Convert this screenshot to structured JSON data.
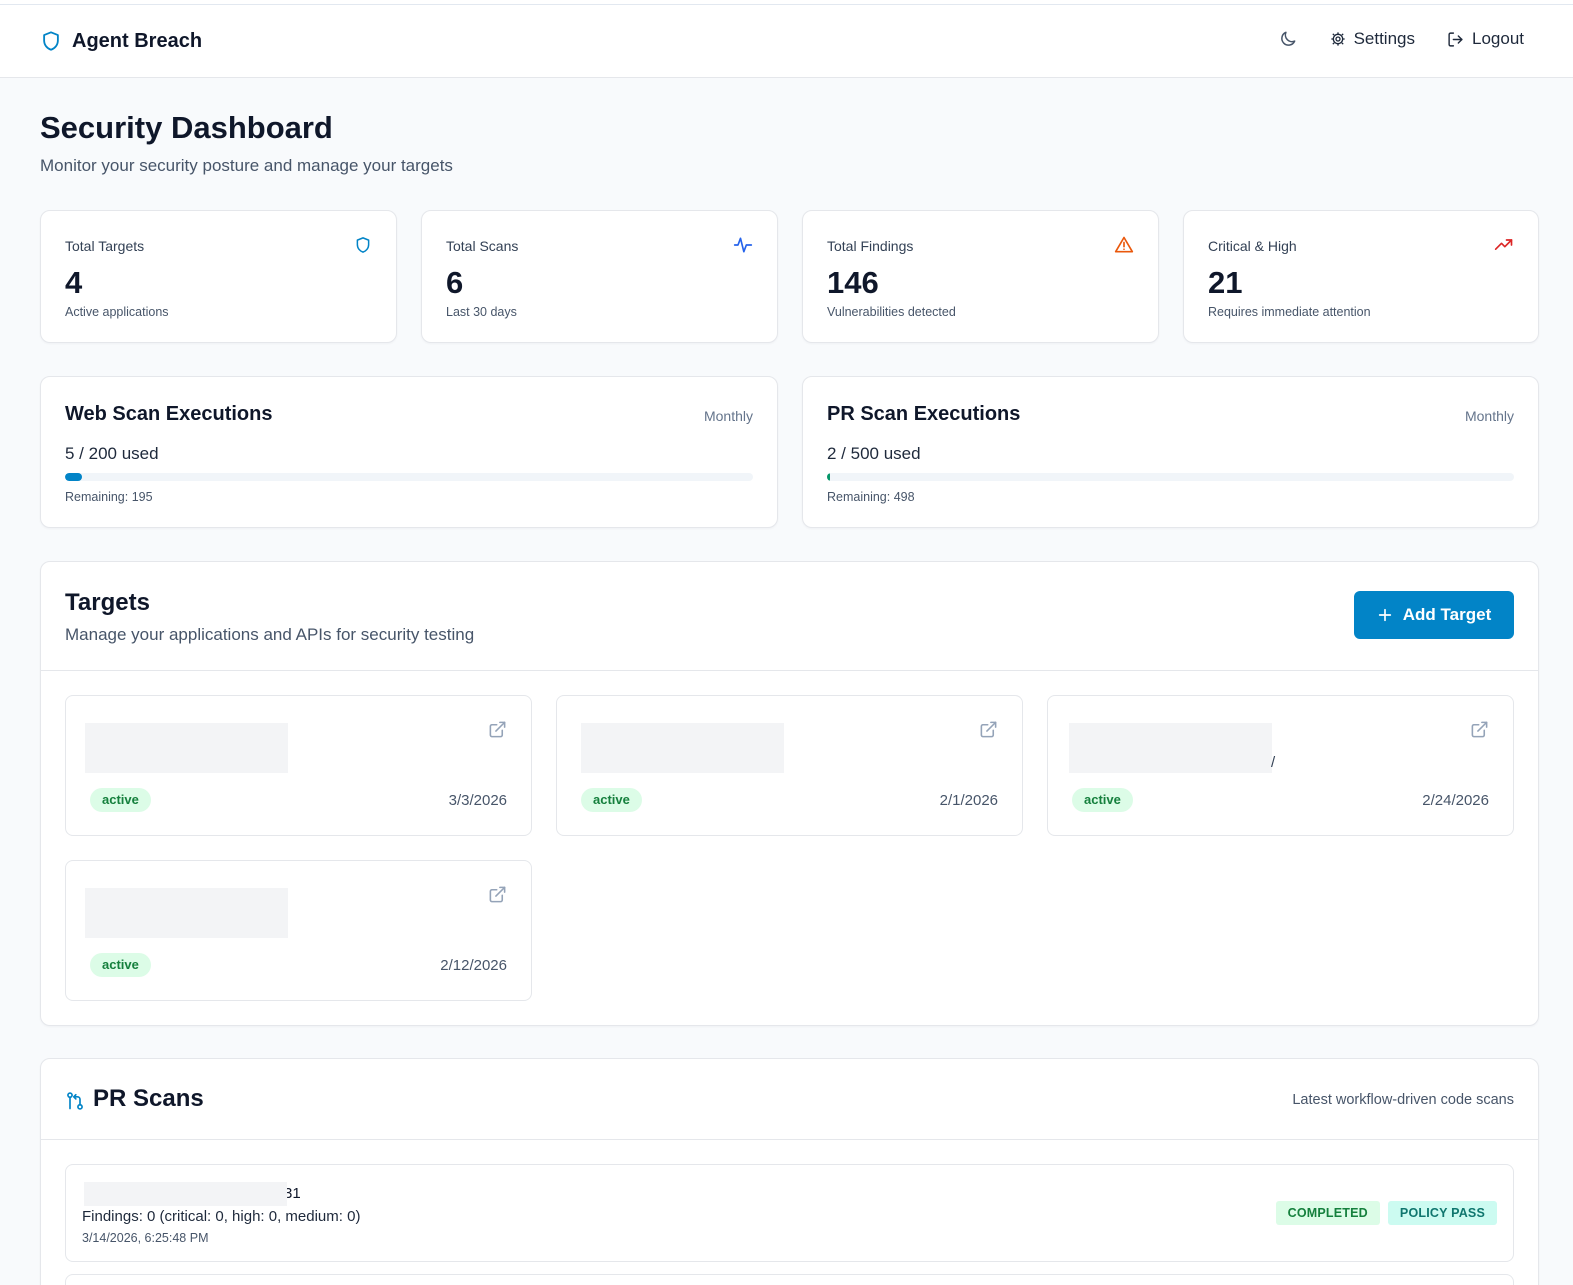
{
  "header": {
    "app_name": "Agent Breach",
    "nav": {
      "settings_label": "Settings",
      "logout_label": "Logout"
    }
  },
  "page": {
    "title": "Security Dashboard",
    "subtitle": "Monitor your security posture and manage your targets"
  },
  "stats": [
    {
      "label": "Total Targets",
      "value": "4",
      "caption": "Active applications",
      "icon": "shield-icon",
      "color": "#0284c7"
    },
    {
      "label": "Total Scans",
      "value": "6",
      "caption": "Last 30 days",
      "icon": "activity-icon",
      "color": "#2563eb"
    },
    {
      "label": "Total Findings",
      "value": "146",
      "caption": "Vulnerabilities detected",
      "icon": "alert-triangle-icon",
      "color": "#ea580c"
    },
    {
      "label": "Critical & High",
      "value": "21",
      "caption": "Requires immediate attention",
      "icon": "trending-up-icon",
      "color": "#dc2626"
    }
  ],
  "usage": [
    {
      "title": "Web Scan Executions",
      "period": "Monthly",
      "used_text": "5 / 200 used",
      "used": 5,
      "limit": 200,
      "remaining_text": "Remaining: 195",
      "bar_color": "#0284c7"
    },
    {
      "title": "PR Scan Executions",
      "period": "Monthly",
      "used_text": "2 / 500 used",
      "used": 2,
      "limit": 500,
      "remaining_text": "Remaining: 498",
      "bar_color": "#059669"
    }
  ],
  "targets": {
    "title": "Targets",
    "subtitle": "Manage your applications and APIs for security testing",
    "add_label": "Add Target",
    "items": [
      {
        "status": "active",
        "date": "3/3/2026"
      },
      {
        "status": "active",
        "date": "2/1/2026"
      },
      {
        "status": "active",
        "date": "2/24/2026",
        "trailing": "/"
      },
      {
        "status": "active",
        "date": "2/12/2026"
      }
    ]
  },
  "pr_scans": {
    "title": "PR Scans",
    "subtitle": "Latest workflow-driven code scans",
    "items": [
      {
        "name_tail": "31",
        "findings": "Findings: 0 (critical: 0, high: 0, medium: 0)",
        "time": "3/14/2026, 6:25:48 PM",
        "status": "COMPLETED",
        "policy": "POLICY PASS"
      }
    ]
  },
  "colors": {
    "accent": "#0284c7",
    "success_bg": "#dcfce7",
    "success_text": "#15803d"
  }
}
